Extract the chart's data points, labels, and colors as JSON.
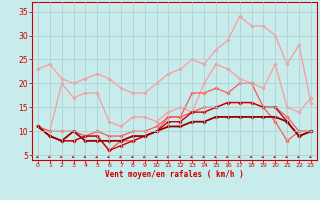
{
  "x": [
    0,
    1,
    2,
    3,
    4,
    5,
    6,
    7,
    8,
    9,
    10,
    11,
    12,
    13,
    14,
    15,
    16,
    17,
    18,
    19,
    20,
    21,
    22,
    23
  ],
  "series": [
    {
      "name": "light1",
      "color": "#ff9999",
      "lw": 0.9,
      "marker": "D",
      "ms": 1.8,
      "y": [
        23,
        24,
        21,
        20,
        21,
        22,
        21,
        19,
        18,
        18,
        20,
        22,
        23,
        25,
        24,
        27,
        29,
        34,
        32,
        32,
        30,
        24,
        28,
        16
      ]
    },
    {
      "name": "light2",
      "color": "#ff9999",
      "lw": 0.9,
      "marker": "D",
      "ms": 1.8,
      "y": [
        11,
        10,
        20,
        17,
        18,
        18,
        12,
        11,
        13,
        13,
        12,
        14,
        15,
        14,
        20,
        24,
        23,
        21,
        20,
        19,
        24,
        15,
        14,
        17
      ]
    },
    {
      "name": "medium1",
      "color": "#ff5555",
      "lw": 0.9,
      "marker": "D",
      "ms": 1.8,
      "y": [
        11,
        9,
        8,
        8,
        9,
        9,
        6,
        8,
        8,
        9,
        10,
        13,
        13,
        18,
        18,
        19,
        18,
        20,
        20,
        15,
        12,
        8,
        10,
        10
      ]
    },
    {
      "name": "medium2",
      "color": "#ff5555",
      "lw": 0.9,
      "marker": "D",
      "ms": 1.8,
      "y": [
        11,
        10,
        10,
        10,
        9,
        10,
        9,
        9,
        10,
        10,
        11,
        13,
        13,
        14,
        15,
        15,
        16,
        16,
        16,
        15,
        15,
        13,
        10,
        10
      ]
    },
    {
      "name": "dark1",
      "color": "#cc0000",
      "lw": 1.0,
      "marker": "D",
      "ms": 1.8,
      "y": [
        11,
        9,
        8,
        8,
        9,
        9,
        6,
        7,
        8,
        9,
        10,
        12,
        12,
        14,
        14,
        15,
        16,
        16,
        16,
        15,
        15,
        12,
        9,
        10
      ]
    },
    {
      "name": "dark2",
      "color": "#990000",
      "lw": 1.3,
      "marker": "D",
      "ms": 1.8,
      "y": [
        11,
        9,
        8,
        10,
        8,
        8,
        8,
        8,
        9,
        9,
        10,
        11,
        11,
        12,
        12,
        13,
        13,
        13,
        13,
        13,
        13,
        12,
        9,
        10
      ]
    }
  ],
  "xlim": [
    -0.5,
    23.5
  ],
  "ylim": [
    4,
    37
  ],
  "yticks": [
    5,
    10,
    15,
    20,
    25,
    30,
    35
  ],
  "xticks": [
    0,
    1,
    2,
    3,
    4,
    5,
    6,
    7,
    8,
    9,
    10,
    11,
    12,
    13,
    14,
    15,
    16,
    17,
    18,
    19,
    20,
    21,
    22,
    23
  ],
  "xlabel": "Vent moyen/en rafales ( km/h )",
  "bg_color": "#c8ecec",
  "grid_color": "#aacccc",
  "axis_color": "#cc0000",
  "xlabel_color": "#cc0000",
  "tick_color": "#cc0000"
}
